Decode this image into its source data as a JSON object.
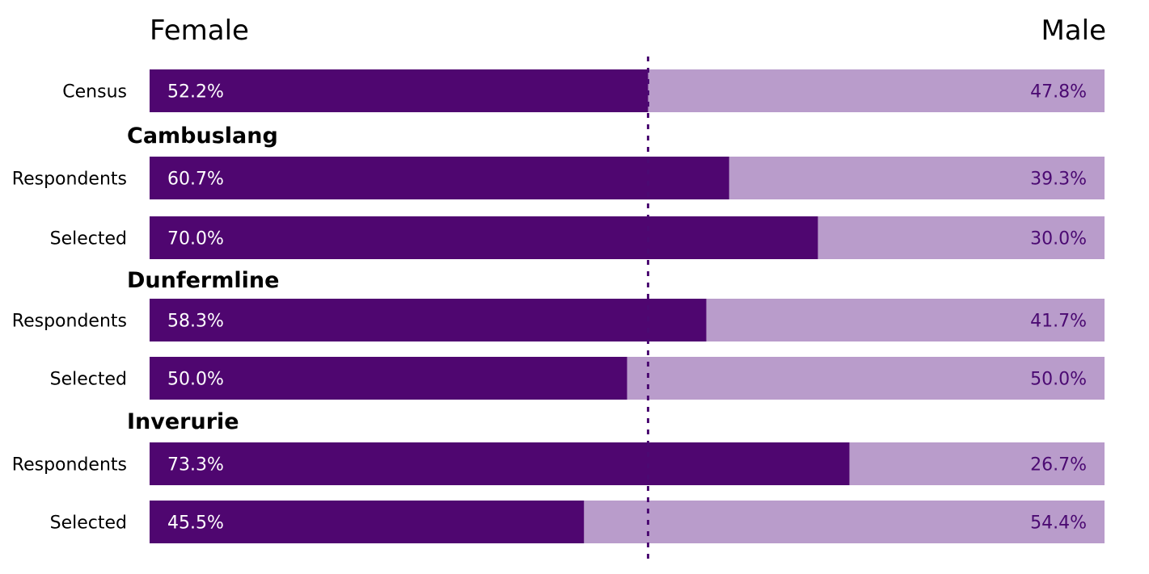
{
  "legend": {
    "female": "Female",
    "male": "Male"
  },
  "colors": {
    "female": "#4f0670",
    "male": "#b99ccb",
    "reference_line": "#4b0a72",
    "male_text": "#4b0a72",
    "female_text": "#ffffff"
  },
  "chart_data": {
    "type": "bar",
    "orientation": "horizontal",
    "stacked": "100%",
    "title": "",
    "xlabel": "",
    "ylabel": "",
    "xlim": [
      0,
      100
    ],
    "series": [
      {
        "name": "Female",
        "values": [
          52.2,
          60.7,
          70.0,
          58.3,
          50.0,
          73.3,
          45.5
        ]
      },
      {
        "name": "Male",
        "values": [
          47.8,
          39.3,
          30.0,
          41.7,
          50.0,
          26.7,
          54.4
        ]
      }
    ],
    "rows": [
      {
        "group": "",
        "label": "Census",
        "female": 52.2,
        "male": 47.8,
        "female_text": "52.2%",
        "male_text": "47.8%"
      },
      {
        "group": "Cambuslang",
        "label": "Respondents",
        "female": 60.7,
        "male": 39.3,
        "female_text": "60.7%",
        "male_text": "39.3%"
      },
      {
        "group": "Cambuslang",
        "label": "Selected",
        "female": 70.0,
        "male": 30.0,
        "female_text": "70.0%",
        "male_text": "30.0%"
      },
      {
        "group": "Dunfermline",
        "label": "Respondents",
        "female": 58.3,
        "male": 41.7,
        "female_text": "58.3%",
        "male_text": "41.7%"
      },
      {
        "group": "Dunfermline",
        "label": "Selected",
        "female": 50.0,
        "male": 50.0,
        "female_text": "50.0%",
        "male_text": "50.0%"
      },
      {
        "group": "Inverurie",
        "label": "Respondents",
        "female": 73.3,
        "male": 26.7,
        "female_text": "73.3%",
        "male_text": "26.7%"
      },
      {
        "group": "Inverurie",
        "label": "Selected",
        "female": 45.5,
        "male": 54.4,
        "female_text": "45.5%",
        "male_text": "54.4%"
      }
    ],
    "groups": [
      "Cambuslang",
      "Dunfermline",
      "Inverurie"
    ],
    "reference_line": {
      "value": 52.2,
      "style": "dotted"
    },
    "grid": false,
    "legend_position": "top"
  }
}
